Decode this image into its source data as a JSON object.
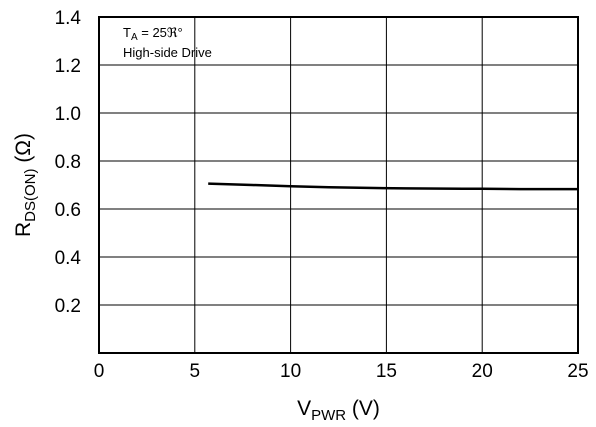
{
  "chart_data": {
    "type": "line",
    "xlabel": {
      "main": "V",
      "sub": "PWR",
      "unit": " (V)"
    },
    "ylabel": {
      "main": "R",
      "sub": "DS(ON)",
      "unit": " (Ω)"
    },
    "xlim": [
      0,
      25
    ],
    "ylim": [
      0,
      1.4
    ],
    "x_ticks": [
      0,
      5,
      10,
      15,
      20,
      25
    ],
    "x_tick_labels": [
      "0",
      "5",
      "10",
      "15",
      "20",
      "25"
    ],
    "y_ticks": [
      0.2,
      0.4,
      0.6,
      0.8,
      1.0,
      1.2,
      1.4
    ],
    "y_tick_labels": [
      "0.2",
      "0.4",
      "0.6",
      "0.8",
      "1.0",
      "1.2",
      "1.4"
    ],
    "grid": true,
    "annotations": [
      {
        "main": "T",
        "sub": "A",
        "rest": " = 25ℜ°"
      },
      {
        "text": "High-side Drive"
      }
    ],
    "series": [
      {
        "x": [
          5.7,
          8,
          10,
          12,
          14,
          16,
          18,
          19,
          20,
          22,
          25
        ],
        "y": [
          0.706,
          0.7,
          0.695,
          0.691,
          0.688,
          0.686,
          0.685,
          0.684,
          0.684,
          0.683,
          0.683
        ],
        "color": "#000000"
      }
    ]
  }
}
